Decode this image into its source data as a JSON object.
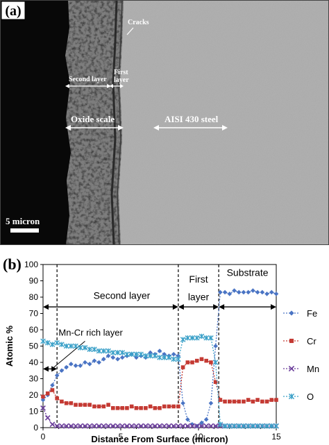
{
  "micrograph": {
    "panel_label": "(a)",
    "labels": {
      "cracks": "Cracks",
      "second_layer": "Second layer",
      "first_layer_line1": "First",
      "first_layer_line2": "layer",
      "oxide_scale": "Oxide scale",
      "steel": "AISI 430 steel",
      "scale_bar": "5 micron"
    }
  },
  "chart_data": {
    "panel_label": "(b)",
    "type": "line",
    "xlabel": "Distance From Surface (micron)",
    "ylabel": "Atomic %",
    "xlim": [
      0,
      15
    ],
    "ylim": [
      0,
      100
    ],
    "x_ticks": [
      "0",
      "5",
      "10",
      "15"
    ],
    "y_ticks": [
      "0",
      "10",
      "20",
      "30",
      "40",
      "50",
      "60",
      "70",
      "80",
      "90",
      "100"
    ],
    "grid": false,
    "legend_position": "right",
    "region_labels": {
      "second_layer": "Second layer",
      "first_layer_line1": "First",
      "first_layer_line2": "layer",
      "substrate": "Substrate",
      "mn_cr_rich": "Mn-Cr rich layer"
    },
    "boundaries": [
      0.9,
      8.7,
      11.3
    ],
    "series": [
      {
        "name": "Fe",
        "color": "#4a74c4",
        "marker": "diamond",
        "x": [
          0,
          0.3,
          0.6,
          0.9,
          1.2,
          1.5,
          1.8,
          2.1,
          2.4,
          2.7,
          3.0,
          3.3,
          3.6,
          3.9,
          4.2,
          4.5,
          4.8,
          5.1,
          5.4,
          5.7,
          6.0,
          6.3,
          6.6,
          6.9,
          7.2,
          7.5,
          7.8,
          8.1,
          8.4,
          8.7,
          9.0,
          9.3,
          9.6,
          9.9,
          10.2,
          10.5,
          10.8,
          11.1,
          11.4,
          11.7,
          12.0,
          12.3,
          12.6,
          12.9,
          13.2,
          13.5,
          13.8,
          14.1,
          14.4,
          14.7,
          15.0
        ],
        "y": [
          17,
          20,
          26,
          32,
          35,
          37,
          39,
          38,
          38,
          40,
          39,
          41,
          40,
          42,
          44,
          43,
          42,
          43,
          44,
          45,
          43,
          44,
          43,
          46,
          45,
          47,
          45,
          44,
          45,
          44,
          15,
          5,
          2,
          1,
          3,
          5,
          15,
          50,
          83,
          83,
          82,
          84,
          83,
          83,
          83,
          84,
          83,
          83,
          82,
          83,
          82
        ]
      },
      {
        "name": "Cr",
        "color": "#c43a33",
        "marker": "square",
        "x": [
          0,
          0.3,
          0.6,
          0.9,
          1.2,
          1.5,
          1.8,
          2.1,
          2.4,
          2.7,
          3.0,
          3.3,
          3.6,
          3.9,
          4.2,
          4.5,
          4.8,
          5.1,
          5.4,
          5.7,
          6.0,
          6.3,
          6.6,
          6.9,
          7.2,
          7.5,
          7.8,
          8.1,
          8.4,
          8.7,
          9.0,
          9.3,
          9.6,
          9.9,
          10.2,
          10.5,
          10.8,
          11.1,
          11.4,
          11.7,
          12.0,
          12.3,
          12.6,
          12.9,
          13.2,
          13.5,
          13.8,
          14.1,
          14.4,
          14.7,
          15.0
        ],
        "y": [
          19,
          21,
          23,
          18,
          16,
          15,
          15,
          14,
          14,
          14,
          14,
          13,
          13,
          13,
          14,
          12,
          12,
          12,
          12,
          13,
          12,
          12,
          12,
          13,
          12,
          12,
          13,
          13,
          13,
          13,
          37,
          40,
          40,
          41,
          42,
          41,
          40,
          28,
          17,
          16,
          16,
          16,
          16,
          16,
          17,
          16,
          17,
          16,
          16,
          17,
          17
        ]
      },
      {
        "name": "Mn",
        "color": "#6a3d9a",
        "marker": "x",
        "x": [
          0,
          0.3,
          0.6,
          0.9,
          1.2,
          1.5,
          1.8,
          2.1,
          2.4,
          2.7,
          3.0,
          3.3,
          3.6,
          3.9,
          4.2,
          4.5,
          4.8,
          5.1,
          5.4,
          5.7,
          6.0,
          6.3,
          6.6,
          6.9,
          7.2,
          7.5,
          7.8,
          8.1,
          8.4,
          8.7,
          9.0,
          9.3,
          9.6,
          9.9,
          10.2,
          10.5,
          10.8,
          11.1,
          11.4,
          11.7,
          12.0,
          12.3,
          12.6,
          12.9,
          13.2,
          13.5,
          13.8,
          14.1,
          14.4,
          14.7,
          15.0
        ],
        "y": [
          12,
          6,
          2,
          1,
          1,
          1,
          1,
          1,
          1,
          1,
          1,
          1,
          1,
          1,
          1,
          1,
          1,
          1,
          1,
          1,
          1,
          1,
          1,
          1,
          1,
          1,
          1,
          1,
          1,
          1,
          1,
          1,
          1,
          1,
          1,
          1,
          1,
          1,
          1,
          1,
          1,
          1,
          1,
          1,
          1,
          1,
          1,
          1,
          1,
          1,
          1
        ]
      },
      {
        "name": "O",
        "color": "#3aa0c8",
        "marker": "star",
        "x": [
          0,
          0.3,
          0.6,
          0.9,
          1.2,
          1.5,
          1.8,
          2.1,
          2.4,
          2.7,
          3.0,
          3.3,
          3.6,
          3.9,
          4.2,
          4.5,
          4.8,
          5.1,
          5.4,
          5.7,
          6.0,
          6.3,
          6.6,
          6.9,
          7.2,
          7.5,
          7.8,
          8.1,
          8.4,
          8.7,
          9.0,
          9.3,
          9.6,
          9.9,
          10.2,
          10.5,
          10.8,
          11.1,
          11.4,
          11.7,
          12.0,
          12.3,
          12.6,
          12.9,
          13.2,
          13.5,
          13.8,
          14.1,
          14.4,
          14.7,
          15.0
        ],
        "y": [
          53,
          52,
          51,
          52,
          51,
          50,
          50,
          50,
          49,
          49,
          48,
          48,
          47,
          47,
          47,
          46,
          46,
          46,
          45,
          45,
          45,
          45,
          44,
          44,
          44,
          43,
          43,
          43,
          42,
          42,
          54,
          55,
          55,
          55,
          56,
          55,
          55,
          40,
          2,
          1,
          1,
          1,
          1,
          1,
          1,
          1,
          1,
          1,
          1,
          1,
          1
        ]
      }
    ]
  }
}
